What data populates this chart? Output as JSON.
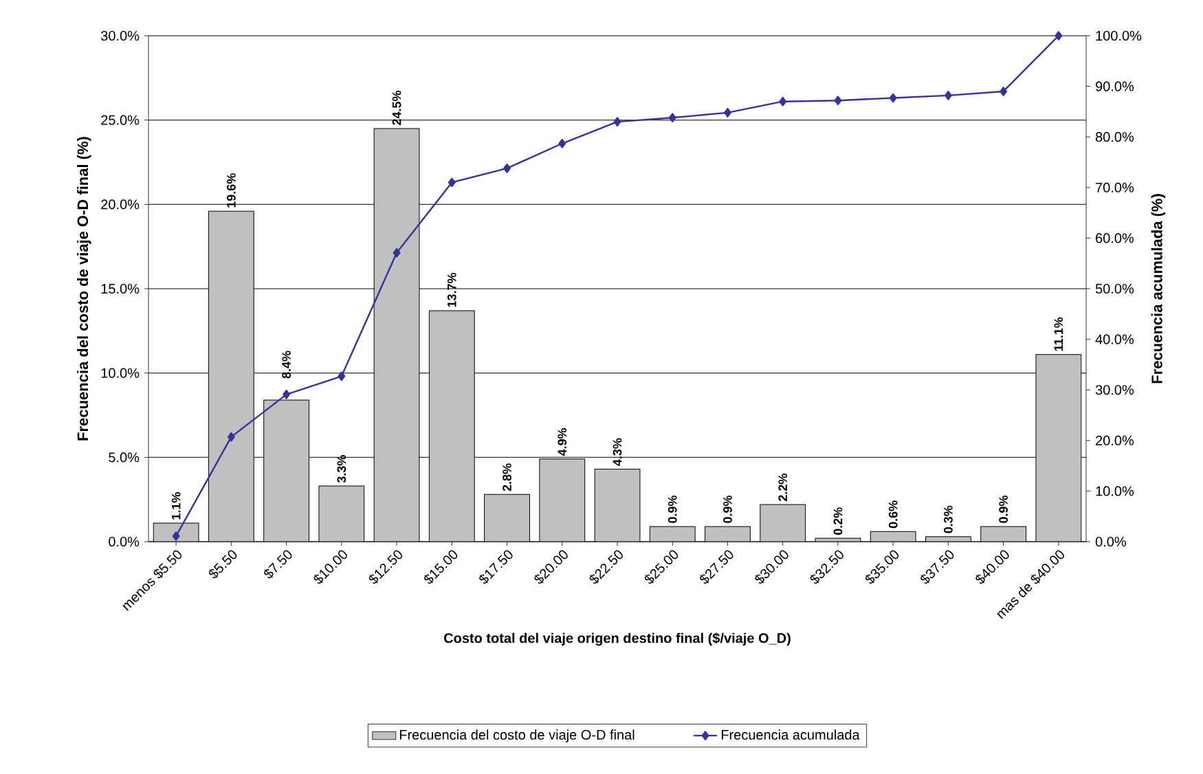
{
  "chart_data": {
    "type": "bar",
    "xlabel": "Costo total del viaje origen destino final ($/viaje O_D)",
    "ylabel": "Frecuencia del costo de viaje O-D final (%)",
    "y2label": "Frecuencia acumulada (%)",
    "categories": [
      "menos $5.50",
      "$5.50",
      "$7.50",
      "$10.00",
      "$12.50",
      "$15.00",
      "$17.50",
      "$20.00",
      "$22.50",
      "$25.00",
      "$27.50",
      "$30.00",
      "$32.50",
      "$35.00",
      "$37.50",
      "$40.00",
      "mas de $40.00"
    ],
    "series": [
      {
        "name": "Frecuencia del costo de viaje O-D final",
        "color": "#c0c0c0",
        "values": [
          1.1,
          19.6,
          8.4,
          3.3,
          24.5,
          13.7,
          2.8,
          4.9,
          4.3,
          0.9,
          0.9,
          2.2,
          0.2,
          0.6,
          0.3,
          0.9,
          11.1
        ],
        "value_labels": [
          "1.1%",
          "19.6%",
          "8.4%",
          "3.3%",
          "24.5%",
          "13.7%",
          "2.8%",
          "4.9%",
          "4.3%",
          "0.9%",
          "0.9%",
          "2.2%",
          "0.2%",
          "0.6%",
          "0.3%",
          "0.9%",
          "11.1%"
        ]
      },
      {
        "name": "Frecuencia acumulada",
        "type": "line",
        "axis": "y2",
        "color": "#333399",
        "marker": "diamond",
        "line_style": "solid",
        "values": [
          1.1,
          20.7,
          29.1,
          32.7,
          57.1,
          71.0,
          73.8,
          78.7,
          83.0,
          83.8,
          84.8,
          87.0,
          87.2,
          87.7,
          88.2,
          89.0,
          100
        ]
      }
    ],
    "ylim": [
      0,
      30
    ],
    "yticks": [
      {
        "value": 0,
        "label": "0.0%"
      },
      {
        "value": 5,
        "label": "5.0%"
      },
      {
        "value": 10,
        "label": "10.0%"
      },
      {
        "value": 15,
        "label": "15.0%"
      },
      {
        "value": 20,
        "label": "20.0%"
      },
      {
        "value": 25,
        "label": "25.0%"
      },
      {
        "value": 30,
        "label": "30.0%"
      }
    ],
    "y2lim": [
      0,
      100
    ],
    "y2ticks": [
      {
        "value": 0,
        "label": "0.0%"
      },
      {
        "value": 10,
        "label": "10.0%"
      },
      {
        "value": 20,
        "label": "20.0%"
      },
      {
        "value": 30,
        "label": "30.0%"
      },
      {
        "value": 40,
        "label": "40.0%"
      },
      {
        "value": 50,
        "label": "50.0%"
      },
      {
        "value": 60,
        "label": "60.0%"
      },
      {
        "value": 70,
        "label": "70.0%"
      },
      {
        "value": 80,
        "label": "80.0%"
      },
      {
        "value": 90,
        "label": "90.0%"
      },
      {
        "value": 100,
        "label": "100.0%"
      }
    ],
    "grid": "y",
    "legend": "bottom"
  }
}
